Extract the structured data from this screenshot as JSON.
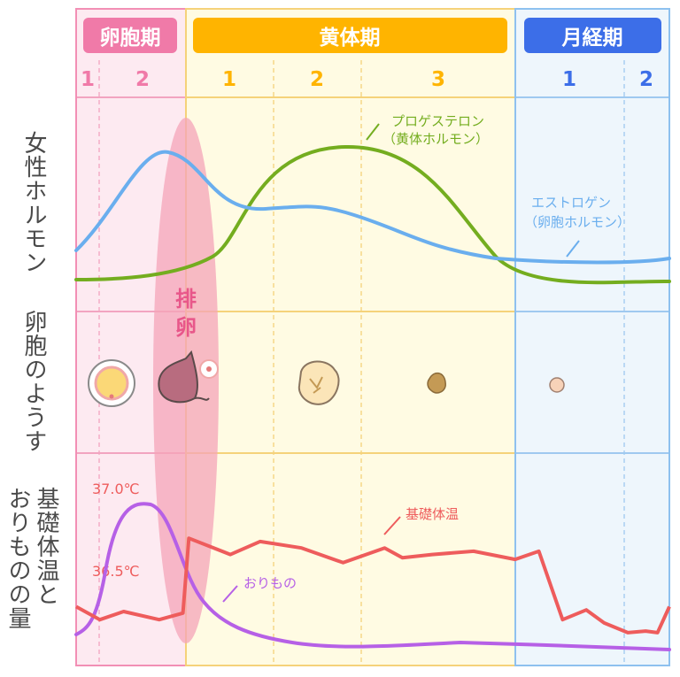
{
  "phases": {
    "follicular": {
      "label": "卵胞期",
      "days": [
        "1",
        "2"
      ],
      "color": "#f07aa8"
    },
    "luteal": {
      "label": "黄体期",
      "days": [
        "1",
        "2",
        "3"
      ],
      "color": "#ffb400"
    },
    "menstrual": {
      "label": "月経期",
      "days": [
        "1",
        "2"
      ],
      "color": "#3c6ee8"
    }
  },
  "row_labels": {
    "hormones": "女性ホルモン",
    "follicle": "卵胞のようす",
    "temperature_col1": "基礎体温と",
    "temperature_col2": "おりものの量"
  },
  "ovulation_label": "排卵",
  "hormone_annotations": {
    "progesterone_1": "プロゲステロン",
    "progesterone_2": "（黄体ホルモン）",
    "estrogen_1": "エストロゲン",
    "estrogen_2": "（卵胞ホルモン）"
  },
  "temperature_annotations": {
    "temp_high": "37.0℃",
    "temp_low": "36.5℃",
    "bbt": "基礎体温",
    "discharge": "おりもの"
  },
  "colors": {
    "estrogen": "#6aaeee",
    "progesterone": "#74ad1f",
    "bbt": "#ee5c5c",
    "discharge": "#b660e6",
    "ovulation": "#f4a4b8"
  },
  "chart_data": {
    "type": "line",
    "title": "",
    "x": [
      0,
      1,
      2,
      3,
      4,
      5,
      6,
      7,
      8,
      9,
      10,
      11,
      12,
      13,
      14,
      15,
      16,
      17,
      18,
      19,
      20,
      21,
      22,
      23,
      24,
      25,
      26,
      27,
      28,
      29,
      30,
      31,
      32,
      33,
      34,
      35,
      36,
      37,
      38,
      39,
      40,
      41,
      42,
      43,
      44,
      45,
      46,
      47,
      48,
      49,
      50,
      51,
      52,
      53,
      54,
      55,
      56,
      57,
      58,
      59,
      60,
      61,
      62,
      63,
      64,
      65,
      66,
      67,
      68,
      69,
      70,
      71,
      72,
      73,
      74,
      75,
      76,
      77,
      78,
      79,
      80,
      81,
      82,
      83,
      84,
      85,
      86,
      87,
      88,
      89,
      90,
      91,
      92,
      93,
      94,
      95,
      96,
      97,
      98,
      99,
      100
    ],
    "series": [
      {
        "name": "エストロゲン（卵胞ホルモン）",
        "color": "#6aaeee",
        "values": [
          15,
          20,
          27,
          34,
          41,
          46,
          49,
          50,
          49,
          47,
          45,
          42,
          40,
          39,
          38,
          37,
          37,
          37,
          37,
          37,
          37,
          37,
          37,
          37,
          37,
          37,
          36,
          35,
          34,
          33,
          31,
          29,
          27,
          25,
          23,
          22,
          21,
          20,
          19,
          18,
          17,
          16,
          15,
          14,
          13,
          12,
          11,
          10,
          10,
          10,
          10,
          10,
          10,
          10,
          10,
          10,
          10,
          10,
          10,
          10,
          10,
          10,
          10,
          10,
          10,
          10,
          10,
          10,
          10,
          10,
          10,
          10,
          10,
          10,
          10,
          10,
          10,
          10,
          10,
          10,
          10,
          10,
          10,
          10,
          10,
          10,
          10,
          10,
          10,
          10,
          10,
          10,
          10,
          10,
          10,
          10,
          10,
          10,
          10,
          10,
          10
        ]
      },
      {
        "name": "プロゲステロン（黄体ホルモン）",
        "color": "#74ad1f",
        "values": [
          2,
          2,
          2,
          2,
          2,
          2,
          2,
          2,
          3,
          3,
          3,
          4,
          4,
          5,
          6,
          8,
          11,
          14,
          18,
          22,
          27,
          32,
          36,
          40,
          43,
          45,
          47,
          48,
          48,
          48,
          48,
          47,
          46,
          45,
          43,
          41,
          39,
          37,
          34,
          31,
          28,
          25,
          22,
          19,
          16,
          12,
          9,
          7,
          5,
          4,
          3,
          3,
          3,
          3,
          3,
          3,
          3,
          3,
          3,
          3,
          3,
          3,
          3,
          3,
          3,
          3,
          3,
          3,
          3,
          3,
          3,
          3,
          3,
          3,
          3,
          3,
          3,
          3,
          3,
          3,
          3,
          3,
          3,
          3,
          3,
          3,
          3,
          3,
          3,
          3,
          3,
          3,
          3,
          3,
          3,
          3,
          3,
          3,
          3,
          3,
          3
        ]
      },
      {
        "name": "基礎体温",
        "color": "#ee5c5c",
        "values": [
          36.3,
          36.3,
          36.2,
          36.2,
          36.25,
          36.25,
          36.3,
          36.3,
          36.2,
          36.25,
          36.3,
          36.3,
          36.3,
          36.3,
          36.3,
          36.3,
          36.3,
          36.3,
          36.3,
          36.3,
          36.3,
          36.3,
          36.3,
          36.3,
          36.3,
          36.3,
          36.3,
          36.3,
          36.3,
          36.3,
          36.3,
          36.3,
          36.3,
          36.3,
          36.3,
          36.3,
          36.3,
          36.3,
          36.3,
          36.3,
          36.3,
          36.3,
          36.3,
          36.3,
          36.3,
          36.3,
          36.3,
          36.3,
          36.3,
          36.3,
          36.3,
          36.3,
          36.3,
          36.3,
          36.3,
          36.3,
          36.3,
          36.3,
          36.3,
          36.3,
          36.3,
          36.3,
          36.3,
          36.3,
          36.3,
          36.3,
          36.3,
          36.3,
          36.3,
          36.3,
          36.3,
          36.3,
          36.3,
          36.3,
          36.3,
          36.3,
          36.3,
          36.3,
          36.3,
          36.3,
          36.3,
          36.3,
          36.3,
          36.3,
          36.3,
          36.3,
          36.3,
          36.3,
          36.3,
          36.3,
          36.3,
          36.3,
          36.3,
          36.3,
          36.3,
          36.3,
          36.3,
          36.3,
          36.3,
          36.3,
          36.3
        ]
      },
      {
        "name": "おりもの",
        "color": "#b660e6",
        "values": [
          5,
          7,
          12,
          30,
          60,
          85,
          96,
          100,
          98,
          92,
          80,
          60,
          45,
          35,
          28,
          22,
          18,
          15,
          13,
          12,
          11,
          10,
          9,
          8,
          7,
          6,
          6,
          5,
          5,
          5,
          5,
          4,
          4,
          4,
          4,
          4,
          4,
          4,
          4,
          4,
          4,
          4,
          4,
          4,
          4,
          4,
          5,
          5,
          5,
          5,
          6,
          6,
          6,
          6,
          7,
          7,
          7,
          7,
          7,
          7,
          7,
          7,
          7,
          7,
          6,
          6,
          6,
          6,
          6,
          6,
          6,
          6,
          6,
          6,
          6,
          6,
          6,
          6,
          6,
          6,
          5,
          5,
          5,
          5,
          5,
          5,
          5,
          5,
          5,
          5,
          5,
          5,
          5,
          5,
          5,
          5,
          5,
          5,
          5,
          5,
          5
        ]
      }
    ],
    "bbt_points": [
      {
        "x": 0,
        "y": 36.28
      },
      {
        "x": 4,
        "y": 36.2
      },
      {
        "x": 8,
        "y": 36.25
      },
      {
        "x": 14,
        "y": 36.2
      },
      {
        "x": 18,
        "y": 36.24
      },
      {
        "x": 19,
        "y": 36.7
      },
      {
        "x": 26,
        "y": 36.6
      },
      {
        "x": 31,
        "y": 36.68
      },
      {
        "x": 38,
        "y": 36.64
      },
      {
        "x": 45,
        "y": 36.55
      },
      {
        "x": 52,
        "y": 36.64
      },
      {
        "x": 55,
        "y": 36.58
      },
      {
        "x": 60,
        "y": 36.6
      },
      {
        "x": 67,
        "y": 36.62
      },
      {
        "x": 74,
        "y": 36.57
      },
      {
        "x": 78,
        "y": 36.62
      },
      {
        "x": 82,
        "y": 36.2
      },
      {
        "x": 86,
        "y": 36.26
      },
      {
        "x": 89,
        "y": 36.18
      },
      {
        "x": 93,
        "y": 36.12
      },
      {
        "x": 96,
        "y": 36.13
      },
      {
        "x": 98,
        "y": 36.12
      },
      {
        "x": 100,
        "y": 36.28
      }
    ],
    "temp_ylim": [
      36.0,
      37.1
    ],
    "hormone_ylim": [
      0,
      60
    ],
    "discharge_ylim": [
      0,
      110
    ]
  }
}
